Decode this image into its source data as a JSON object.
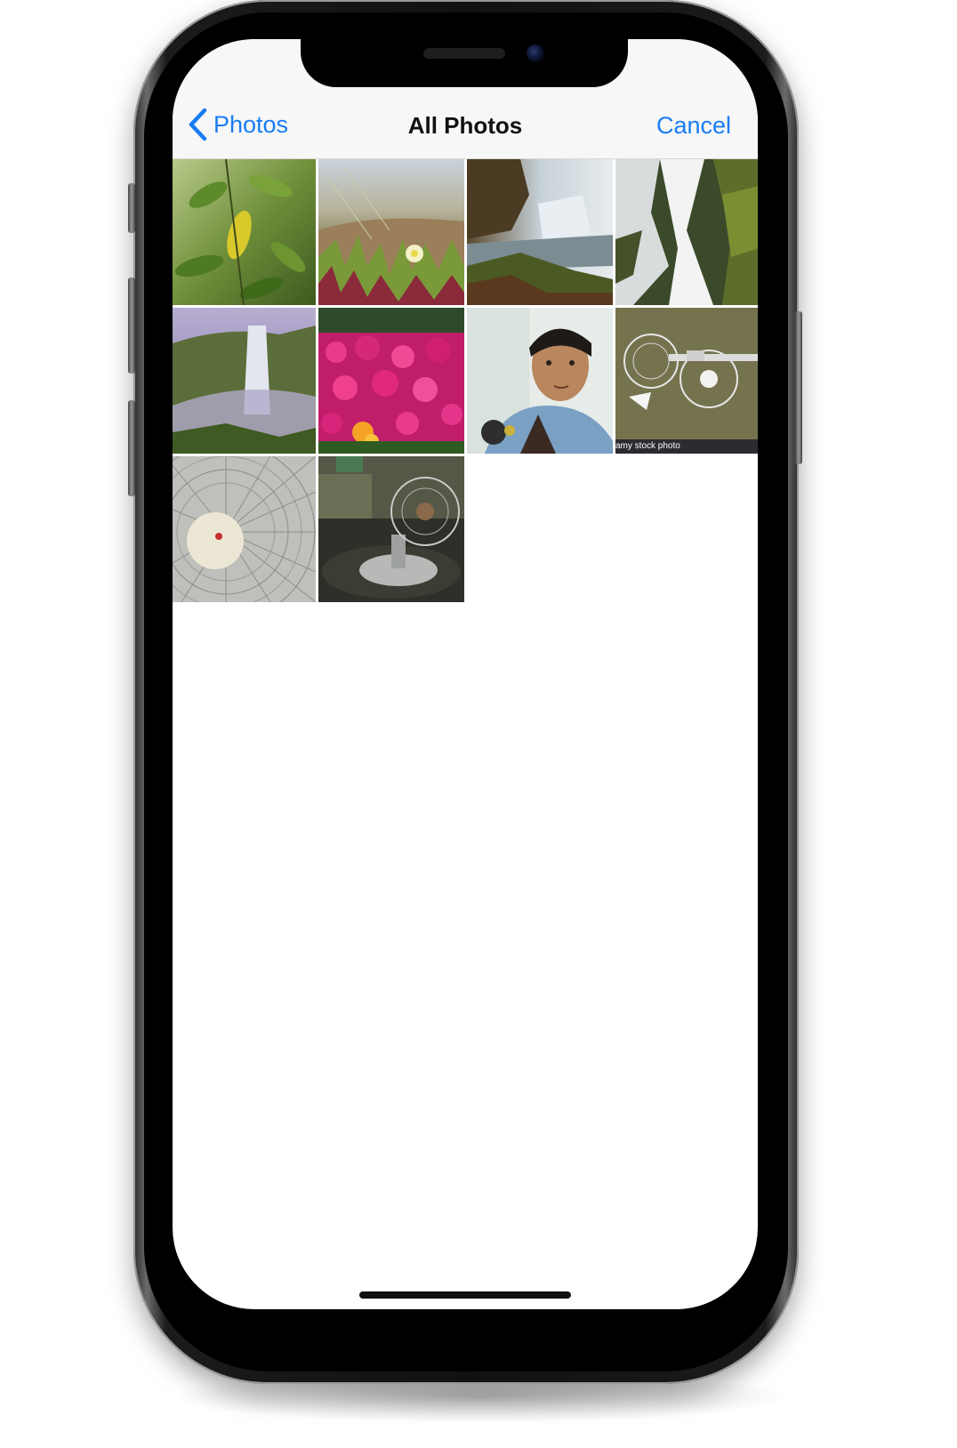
{
  "navbar": {
    "back_label": "Photos",
    "title": "All Photos",
    "cancel_label": "Cancel"
  },
  "accent_color": "#1a7cf5",
  "photos": [
    {
      "name": "photo-green-leaves"
    },
    {
      "name": "photo-ice-plant-flower"
    },
    {
      "name": "photo-waterfall-cliffs"
    },
    {
      "name": "photo-waterfall-longexposure"
    },
    {
      "name": "photo-waterfall-valley"
    },
    {
      "name": "photo-pink-flowers"
    },
    {
      "name": "photo-selfie"
    },
    {
      "name": "photo-disassembled-fan",
      "caption": "amy stock photo"
    },
    {
      "name": "photo-fan-closeup"
    },
    {
      "name": "photo-table-fan"
    }
  ]
}
